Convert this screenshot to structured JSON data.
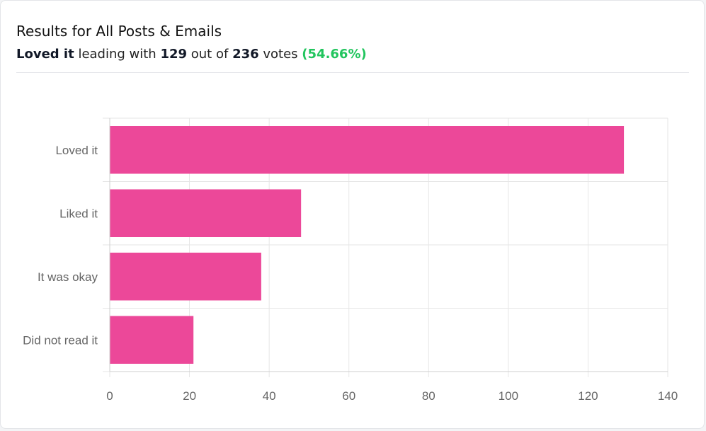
{
  "header": {
    "title": "Results for All Posts & Emails",
    "leader": "Loved it",
    "leading_text": "leading with",
    "leader_votes": "129",
    "out_of_text": "out of",
    "total_votes": "236",
    "votes_text": "votes",
    "percent": "(54.66%)"
  },
  "colors": {
    "bar": "#ec4899",
    "grid": "#e6e6e6",
    "accent_green": "#22c55e"
  },
  "chart_data": {
    "type": "bar",
    "orientation": "horizontal",
    "categories": [
      "Loved it",
      "Liked it",
      "It was okay",
      "Did not read it"
    ],
    "values": [
      129,
      48,
      38,
      21
    ],
    "xlim": [
      0,
      140
    ],
    "xticks": [
      0,
      20,
      40,
      60,
      80,
      100,
      120,
      140
    ],
    "grid": true,
    "legend": "none"
  }
}
